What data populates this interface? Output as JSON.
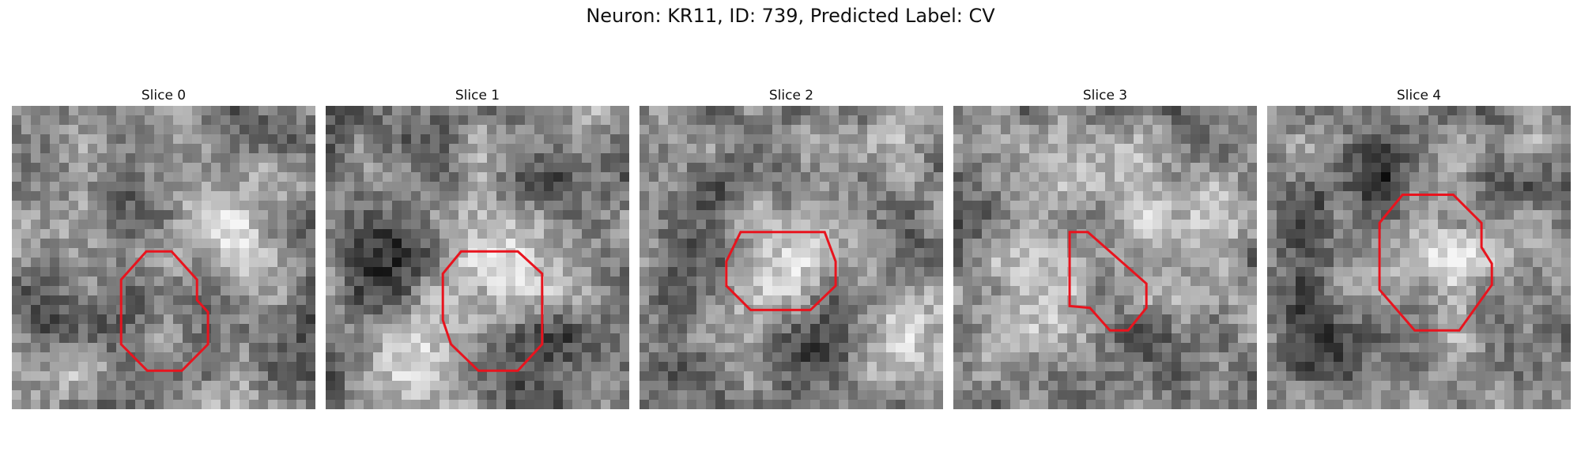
{
  "figure": {
    "title": "Neuron: KR11, ID: 739, Predicted Label: CV"
  },
  "colors": {
    "roi_outline": "#e8141e",
    "background": "#ffffff",
    "colormap": "grayscale"
  },
  "panels": [
    {
      "title": "Slice 0"
    },
    {
      "title": "Slice 1"
    },
    {
      "title": "Slice 2"
    },
    {
      "title": "Slice 3"
    },
    {
      "title": "Slice 4"
    }
  ]
}
